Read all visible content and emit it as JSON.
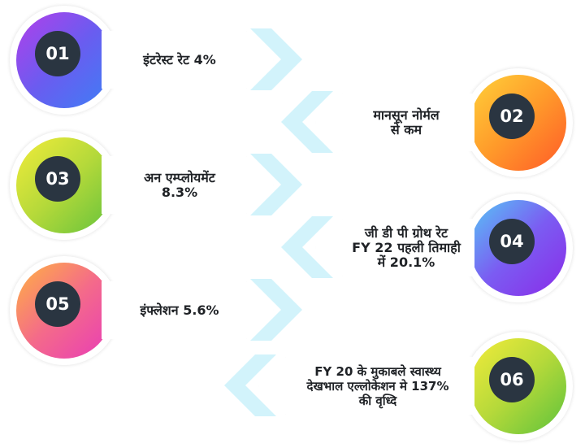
{
  "items": [
    {
      "number": "01",
      "text": "इंटरेस्ट रेट 4%",
      "gradient": [
        "#b33fea",
        "#6a5cf0",
        "#3d7ff5"
      ]
    },
    {
      "number": "02",
      "text": "मानसून नोर्मल\nसे कम",
      "gradient": [
        "#ffd23a",
        "#ff9a2a",
        "#ff5a28"
      ]
    },
    {
      "number": "03",
      "text": "अन एम्प्लोयमेंट\n8.3%",
      "gradient": [
        "#f2ec3a",
        "#b5d93a",
        "#64c23c"
      ]
    },
    {
      "number": "04",
      "text": "जी डी पी ग्रोथ रेट\nFY 22 पहली तिमाही\nमें 20.1%",
      "gradient": [
        "#56c8f5",
        "#7b5cf2",
        "#8a2be8"
      ]
    },
    {
      "number": "05",
      "text": "इंफ्लेशन 5.6%",
      "gradient": [
        "#ffb341",
        "#f46a8a",
        "#e83bb8"
      ]
    },
    {
      "number": "06",
      "text": "FY 20 के मुकाबले स्वास्थ्य\nदेखभाल एल्लोकेशन मे 137%\nकी वृध्दि",
      "gradient": [
        "#f4ec3a",
        "#b5d93a",
        "#5dc23c"
      ]
    }
  ]
}
